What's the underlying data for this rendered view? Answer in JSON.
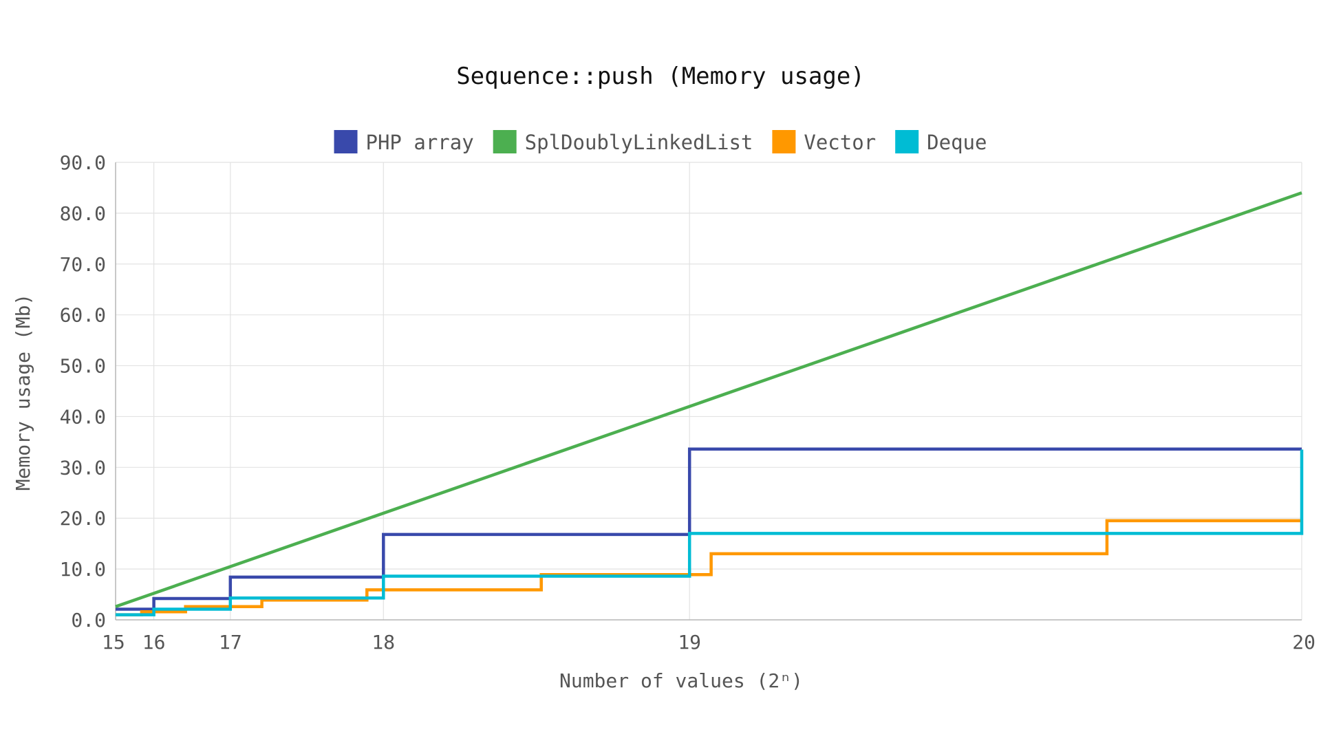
{
  "chart_data": {
    "type": "line",
    "title": "Sequence::push (Memory usage)",
    "xlabel": "Number of values (2ⁿ)",
    "ylabel": "Memory usage (Mb)",
    "x_ticks": [
      15,
      16,
      17,
      18,
      19,
      20
    ],
    "x_scale": "log2",
    "xlim": [
      15,
      20
    ],
    "ylim": [
      0,
      90
    ],
    "y_ticks": [
      "0.0",
      "10.0",
      "20.0",
      "30.0",
      "40.0",
      "50.0",
      "60.0",
      "70.0",
      "80.0",
      "90.0"
    ],
    "grid": true,
    "legend_position": "top",
    "series": [
      {
        "name": "PHP array",
        "color": "#3949ab",
        "step": true,
        "points": [
          [
            15,
            2.1
          ],
          [
            16,
            4.2
          ],
          [
            17,
            8.4
          ],
          [
            18,
            16.8
          ],
          [
            19,
            33.6
          ],
          [
            20,
            33.6
          ]
        ]
      },
      {
        "name": "SplDoublyLinkedList",
        "color": "#4caf50",
        "step": false,
        "points": [
          [
            15,
            2.6
          ],
          [
            20,
            84.0
          ]
        ]
      },
      {
        "name": "Vector",
        "color": "#ff9800",
        "step": true,
        "points": [
          [
            15,
            1.0
          ],
          [
            15.75,
            1.6
          ],
          [
            16.5,
            2.6
          ],
          [
            17.27,
            3.9
          ],
          [
            17.92,
            5.9
          ],
          [
            18.6,
            8.9
          ],
          [
            19.05,
            13.0
          ],
          [
            19.75,
            19.5
          ],
          [
            20,
            19.5
          ]
        ]
      },
      {
        "name": "Deque",
        "color": "#00bcd4",
        "step": true,
        "points": [
          [
            15,
            1.0
          ],
          [
            16,
            2.1
          ],
          [
            17,
            4.3
          ],
          [
            18,
            8.6
          ],
          [
            19,
            17.0
          ],
          [
            20,
            33.5
          ]
        ]
      }
    ]
  }
}
